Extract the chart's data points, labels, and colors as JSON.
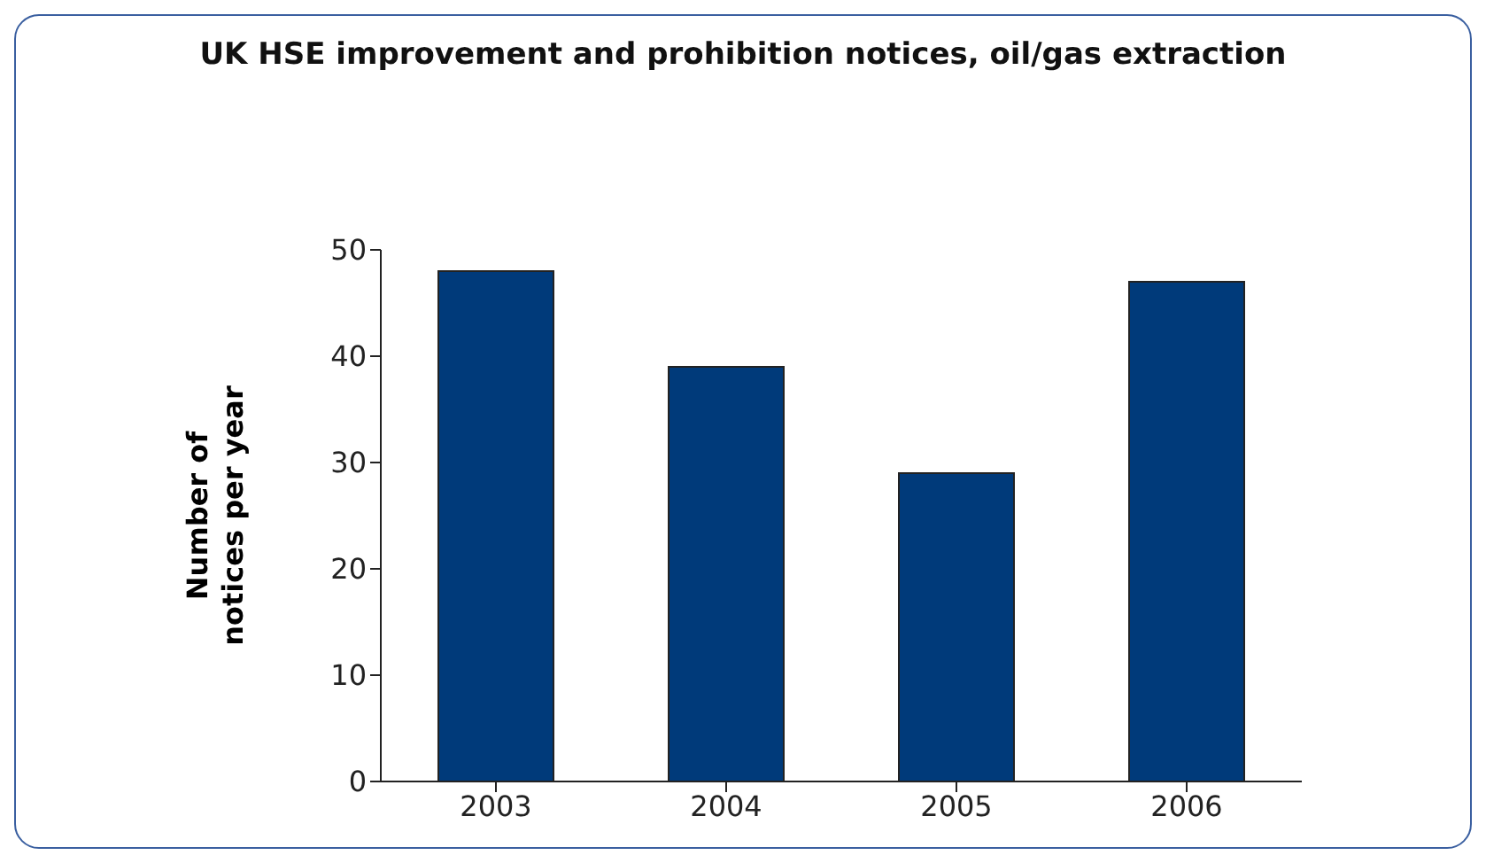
{
  "chart_data": {
    "type": "bar",
    "title": "UK HSE improvement and prohibition notices, oil/gas extraction",
    "ylabel": "Number of notices per year",
    "categories": [
      "2003",
      "2004",
      "2005",
      "2006"
    ],
    "values": [
      48,
      39,
      29,
      47
    ],
    "color": "#003a7a",
    "ylim": [
      0,
      50
    ],
    "yticks": [
      0,
      10,
      20,
      30,
      40,
      50
    ],
    "grid": false,
    "legend": false
  }
}
